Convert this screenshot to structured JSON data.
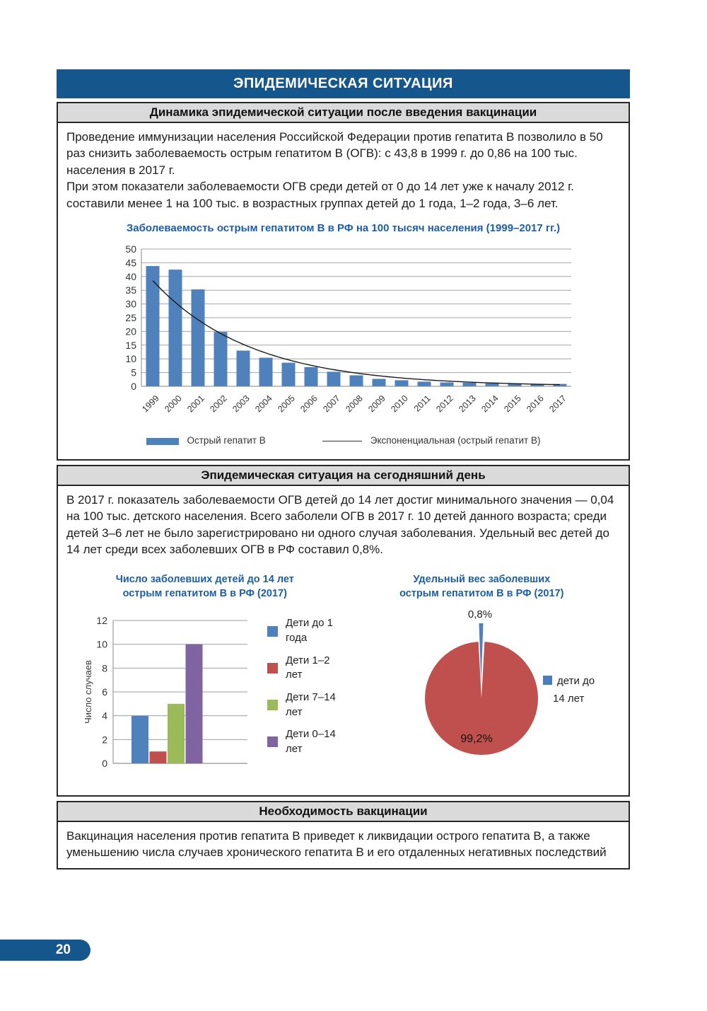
{
  "page_number": "20",
  "main_title": "ЭПИДЕМИЧЕСКАЯ СИТУАЦИЯ",
  "colors": {
    "header_blue": "#15568C",
    "title_blue": "#1B5EA8",
    "bar_blue": "#4F81BD",
    "red": "#C0504D",
    "green": "#9BBB59",
    "purple": "#8064A2",
    "header_gray": "#DADADA"
  },
  "sections": {
    "dynamics": {
      "header": "Динамика эпидемической ситуации после введения вакцинации",
      "para1": "Проведение иммунизации населения Российской Федерации против гепатита В позволило в 50 раз снизить заболеваемость острым гепатитом В (ОГВ): с 43,8 в 1999 г. до 0,86 на 100 тыс. населения в 2017 г.",
      "para2": "При этом показатели заболеваемости ОГВ среди детей от 0 до 14 лет уже к началу 2012 г. составили менее 1 на 100 тыс. в возрастных группах детей до 1 года, 1–2 года, 3–6 лет."
    },
    "today": {
      "header": "Эпидемическая ситуация на сегодняшний день",
      "para": "В 2017 г. показатель заболеваемости ОГВ детей до 14 лет достиг минимального значения — 0,04 на 100 тыс. детского населения. Всего заболели ОГВ в 2017 г. 10 детей данного возраста; среди детей 3–6 лет не было зарегистрировано ни одного случая заболевания. Удельный вес детей до 14 лет среди всех заболевших ОГВ в РФ составил 0,8%."
    },
    "necessity": {
      "header": "Необходимость вакцинации",
      "para": "Вакцинация населения против гепатита В приведет к ликвидации острого гепатита В, а также уменьшению числа случаев хронического гепатита В и его отдаленных негативных последствий"
    }
  },
  "chart_data": [
    {
      "type": "bar",
      "title": "Заболеваемость острым гепатитом В в РФ на 100 тысяч населения (1999–2017 гг.)",
      "categories": [
        "1999",
        "2000",
        "2001",
        "2002",
        "2003",
        "2004",
        "2005",
        "2006",
        "2007",
        "2008",
        "2009",
        "2010",
        "2011",
        "2012",
        "2013",
        "2014",
        "2015",
        "2016",
        "2017"
      ],
      "values": [
        43.8,
        42.5,
        35.3,
        19.8,
        13,
        10.4,
        8.6,
        7,
        5.3,
        4,
        2.7,
        2.2,
        1.7,
        1.4,
        1.3,
        1.1,
        1,
        0.9,
        0.86
      ],
      "xlabel": "",
      "ylabel": "",
      "ylim": [
        0,
        50
      ],
      "ytick_step": 5,
      "grid": true,
      "bar_color": "#4F81BD",
      "trendline": {
        "a": 38.5,
        "b": 0.231,
        "color": "#1a1a1a"
      },
      "legend_position": "bottom",
      "legend": [
        {
          "swatch": "bar",
          "color": "#4F81BD",
          "label": "Острый гепатит В"
        },
        {
          "swatch": "line",
          "color": "#333333",
          "label": "Экспоненциальная (острый гепатит В)"
        }
      ]
    },
    {
      "type": "bar",
      "title_line1": "Число заболевших детей до 14 лет",
      "title_line2": "острым гепатитом В в РФ (2017)",
      "ylabel": "Число  случаев",
      "categories": [
        "Дети до 1 года",
        "Дети 1–2 лет",
        "Дети 7–14 лет",
        "Дети 0–14 лет"
      ],
      "values": [
        4,
        1,
        5,
        10
      ],
      "colors": [
        "#4F81BD",
        "#C0504D",
        "#9BBB59",
        "#8064A2"
      ],
      "ylim": [
        0,
        12
      ],
      "ytick_step": 2,
      "grid": true,
      "legend_position": "right"
    },
    {
      "type": "pie",
      "title_line1": "Удельный вес заболевших",
      "title_line2": "острым гепатитом В в РФ (2017)",
      "slices": [
        {
          "label": "дети до 14 лет",
          "value": 0.8,
          "display": "0,8%",
          "color": "#4F81BD"
        },
        {
          "label": "",
          "value": 99.2,
          "display": "99,2%",
          "color": "#C0504D"
        }
      ],
      "legend": [
        {
          "color": "#4A7EBB",
          "label_line1": "дети до",
          "label_line2": "14 лет"
        }
      ]
    }
  ]
}
